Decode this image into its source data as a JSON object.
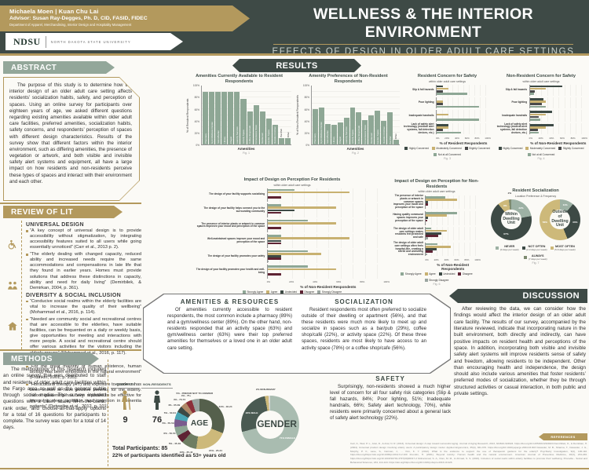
{
  "colors": {
    "header_bg": "#3e4a46",
    "gold": "#b3995d",
    "sage_banner": "#93a79a",
    "bar_sage": "#8ea795",
    "tan": "#c8b171",
    "dark": "#3d4a45",
    "maroon": "#5e2333",
    "gray": "#9aa5a0"
  },
  "header": {
    "authors": "Michaela Moen | Kuan Chu Lai",
    "advisor": "Advisor: Susan Ray-Degges, Ph. D, CID, FASID, FIDEC",
    "department": "Department of Apparel, Merchandising, Interior Design and Hospitality Management",
    "ndsu": "NDSU",
    "university": "NORTH DAKOTA STATE UNIVERSITY",
    "title": "WELLNESS & THE INTERIOR ENVIRONMENT",
    "subtitle": "EFFECTS OF DESIGN IN OLDER ADULT CARE SETTINGS"
  },
  "abstract": {
    "heading": "ABSTRACT",
    "body": "The purpose of this study is to determine how the interior design of an older adult care setting affects residents’ socialization habits, safety, and perception of spaces. Using an online survey for participants over eighteen years of age, we asked different questions regarding existing amenities available within older adult care facilities, preferred amenities, socialization habits, safety concerns, and respondents’ perception of spaces with different design characteristics. Results of the survey show that different factors within the interior environment, such as differing amenities, the presence of vegetation or artwork, and both visible and invisible safety alert systems and equipment, all have a large impact on how residents and non-residents perceive these types of spaces and interact with their environment and each other."
  },
  "review": {
    "heading": "REVIEW OF LIT",
    "sections": [
      {
        "title": "UNIVERSAL DESIGN",
        "icon": "wheelchair-icon",
        "bullets": [
          "“A key concept of universal design is to provide accessibility without stigmatization, by integrating accessibility features suited to all users while going essentially unnoticed” (Carr et al., 2013 p. 2).",
          "“The elderly dealing with changed capacity, reduced ability and increased needs require the same accommodations and compensations in late life that they found in earlier years. Homes must provide solutions that address these distinctions in capacity, ability and need for daily living” (Demirbilek, & Demirkan, 2004, p. 361)."
        ]
      },
      {
        "title": "DIVERSITY & SOCIAL INCLUSION",
        "icon": "people-icon",
        "bullets": [
          "“Conducive social realms within the elderly facilities are vital to increase the quality of their wellbeing” (Mohammad et al., 2016, p. 114).",
          "“Needed are community social and recreational centres that are accessible to the elderlies, have suitable facilities, can be frequented on a daily or weekly basis, give opportunities for meeting and interactions with more people. A social and recreational centre should offer various activities for the visitors including the elderly groups” (Mohammad et al., 2016, p. 117)."
        ]
      },
      {
        "title": "ENVIRONMENT",
        "icon": "house-icon",
        "bullets": [
          "“For the great majority of human existence, human biology has been embedded in the natural environment” (Frumkin, 2001, p. 235).",
          "“Horticultural therapy (HT) and exposure to gardens has been shown to have positive benefits for the elderly. Indoor gardening has been reported to be effective for improving sleep, agitation, and cognition in dementia patients” (Detweiler et al., 2012, p. 101)."
        ]
      }
    ]
  },
  "methods": {
    "heading": "METHODS",
    "body": "The methodology of this research included an online survey that was distributed to staff and residents of older adult care facilities within the Fargo area as well as the general public through social media. The survey included questions with a Likert scale, fill-in-the-blank, rank order, and choose-all-that-apply options for a total of 16 questions for participants to complete. The survey was open for a total of 14 days."
  },
  "results_heading": "RESULTS",
  "panels": {
    "amenities": {
      "heading": "AMENITIES & RESOURCES",
      "body": "Of amenities currently accessible to resident respondents, the most common include a pharmacy (89%) and a gym/wellness center (89%). On the other hand, non-residents responded that an activity space (63%) and gym/wellness center (63%) were their top preferred amenities for themselves or a loved one in an older adult care setting."
    },
    "socialization": {
      "heading": "SOCIALIZATION",
      "body": "Resident respondents most often preferred to socialize outside of their dwelling or apartment (56%), and that these residents were much more likely to meet up and socialize in spaces such as a bar/pub (29%), coffee shop/café (22%), or activity space (22%). Of these three spaces, residents are most likely to have access to an activity space (78%) or a coffee shop/cafe (56%)."
    },
    "safety": {
      "heading": "SAFETY",
      "body": "Surprisingly, non-residents showed a much higher level of concern for all four safety risk categories (Slip & fall hazards, 84%; Poor lighting, 51%; Inadequate handrails, 66%; Safety alert technology, 70%), while residents were primarily concerned about a general lack of safety alert technology (22%)."
    },
    "discussion": {
      "heading": "DISCUSSION",
      "body": "After reviewing the data, we can consider how the findings would affect the interior design of an older adult care facility. The results of our survey, accompanied by the literature reviewed, indicate that incorporating nature in the built environment, both directly and indirectly, can have positive impacts on resident health and perceptions of the space. In addition, incorporating both visible and invisible safety alert systems will improve residents sense of safety and freedom, allowing residents to be independent. Other than encouraging health and independence, the design should also include various amenities that foster residents’ preferred modes of socialization, whether they be through structured activities or casual interaction, in both public and private settings."
    }
  },
  "references": {
    "heading": "REFERENCES",
    "lines": [
      "Carr, K., Weir, P. L., Azar, D., & Azar, N. R. (2013). Universal design: A step toward successful aging. Journal of Aging Research, 2013, 324624-324624. https://doi.org/10.1155/2013/324624",
      "Demirbilek, O., & Demirkan, H. (2004). Universal product design involving elderly users: A participatory design model. Applied Ergonomics, 35(4), 361-370. https://doi.org/10.1016/j.apergo.2004.03.003",
      "Detweiler, M. B., Sharma, T., Detweiler, J. G., Murphy, P. F., Lane, S., Carman, J., … Kim, K. Y. (2012). What is the evidence to support the use of therapeutic gardens for the elderly? Psychiatry Investigation, 9(2), 100-110. https://doi.org/https://doi.org/10.4306/pi.2012.9.2.100",
      "Frumkin, H. (2001). Beyond toxicity: Human health and the natural environment. American Journal of Preventive Medicine, 20(3), 234-240. https://doi.org/https://doi.org/10.1016/S0749-3797(00)00317-2",
      "Mohammad, S. A., Dom, M. M., & Ahmad, S. S. (2016). Inclusion of social realm within elderly facilities to promote their wellbeing. Procedia - Social and Behavioral Sciences, 234, 114-124. https://doi.org/https://doi.org/10.1016/j.sbspro.2016.10.226"
    ]
  },
  "demographics": {
    "residents_label": "RESIDENTS",
    "residents_count": "9",
    "nonresidents_label": "NON-RESIDENTS",
    "nonresidents_count": "76",
    "total_line": "Total Participants: 85",
    "age_note": "22% of participants identified as 53+ years old"
  },
  "chart_data": [
    {
      "type": "bar",
      "title": "Amenities Currently Available to Resident Respondents",
      "xlabel": "Amenities",
      "ylabel": "% of Resident Respondents",
      "ylim": [
        0,
        100
      ],
      "caption": "Fig. 1",
      "color": "#8ea795",
      "categories": [
        "Pharmacy",
        "Gym/Wellness Center",
        "Salon/Barber",
        "Library",
        "Chapel",
        "Laundry Services",
        "Activity Space",
        "Coffee Shop/Café",
        "Convenience Store",
        "Restaurant",
        "Garden Space",
        "Resident Kitchen",
        "Bar/Pub",
        "Other"
      ],
      "values": [
        89,
        89,
        89,
        89,
        89,
        89,
        78,
        56,
        67,
        56,
        44,
        33,
        11,
        11
      ]
    },
    {
      "type": "bar",
      "title": "Amenity Preferences of Non-Resident Respondents",
      "xlabel": "Amenities",
      "ylabel": "% of Non-Resident Respondents",
      "ylim": [
        0,
        100
      ],
      "caption": "Fig. 2",
      "color": "#8ea795",
      "categories": [
        "Pharmacy",
        "Gym/Wellness Center",
        "Salon/Barber",
        "Library",
        "Chapel",
        "Laundry Services",
        "Activity Space",
        "Coffee Shop/Café",
        "Convenience Store",
        "Restaurant",
        "Garden Space",
        "Resident Kitchen",
        "Bar/Pub",
        "Other"
      ],
      "values": [
        60,
        63,
        35,
        33,
        38,
        45,
        63,
        55,
        42,
        50,
        57,
        40,
        55,
        8
      ]
    },
    {
      "type": "hbar",
      "title": "Resident Concern for Safety",
      "subtitle": "within older adult care settings",
      "xlabel": "% of Resident Respondents",
      "xlim": [
        0,
        100
      ],
      "caption": "Fig. 3",
      "categories": [
        "Slip & fall hazards",
        "Poor lighting",
        "Inadequate handrails",
        "Lack of safety alert technology (medical alert systems, fall detection devices, etc.)"
      ],
      "series": [
        {
          "name": "Highly Concerned",
          "color": "#3d4a45",
          "values": [
            11,
            0,
            0,
            22
          ]
        },
        {
          "name": "Moderately Concerned",
          "color": "#c8b171",
          "values": [
            22,
            11,
            22,
            22
          ]
        },
        {
          "name": "Slightly Concerned",
          "color": "#4a4a4a",
          "values": [
            11,
            11,
            0,
            11
          ]
        },
        {
          "name": "Not at all Concerned",
          "color": "#8ea795",
          "values": [
            56,
            78,
            78,
            45
          ]
        }
      ]
    },
    {
      "type": "hbar",
      "title": "Non-Resident Concern for Safety",
      "subtitle": "within older adult care settings",
      "xlabel": "% of Non-Resident Respondents",
      "xlim": [
        0,
        100
      ],
      "caption": "Fig. 4",
      "categories": [
        "Slip & fall hazards",
        "Poor lighting",
        "Inadequate handrails",
        "Lack of safety alert technology (medical alert systems, fall detection devices, etc.)"
      ],
      "series": [
        {
          "name": "Highly Concerned",
          "color": "#3d4a45",
          "values": [
            56,
            23,
            38,
            42
          ]
        },
        {
          "name": "Moderately Concerned",
          "color": "#c8b171",
          "values": [
            28,
            28,
            28,
            28
          ]
        },
        {
          "name": "Slightly Concerned",
          "color": "#4a4a4a",
          "values": [
            9,
            21,
            16,
            14
          ]
        },
        {
          "name": "Not at all Concerned",
          "color": "#8ea795",
          "values": [
            7,
            28,
            18,
            16
          ]
        }
      ]
    },
    {
      "type": "hbar",
      "title": "Impact of Design on Perception For Residents",
      "subtitle": "within older adult care settings",
      "xlabel": "% of Non-Resident Respondents",
      "xlim": [
        0,
        100
      ],
      "caption": "Fig. 5",
      "categories": [
        "The design of your facility supports socializing",
        "The design of your facility helps connect you to the surrounding community",
        "The presence of interior plants or artwork in common spaces improves your mood and perception of the space",
        "Well-maintained spaces improve your mood and perception of the space",
        "The design of your facility promotes your safety",
        "The design of your facility promotes your health and well-being"
      ],
      "series": [
        {
          "name": "Strongly Agree",
          "color": "#8ea795",
          "values": [
            22,
            11,
            33,
            11,
            33,
            33
          ]
        },
        {
          "name": "Agree",
          "color": "#c8b171",
          "values": [
            67,
            56,
            56,
            67,
            44,
            56
          ]
        },
        {
          "name": "Undecided",
          "color": "#3d4a45",
          "values": [
            0,
            22,
            0,
            11,
            11,
            0
          ]
        },
        {
          "name": "Disagree",
          "color": "#5e2333",
          "values": [
            11,
            11,
            11,
            11,
            11,
            11
          ]
        },
        {
          "name": "Strongly Disagree",
          "color": "#9aa5a0",
          "values": [
            0,
            0,
            0,
            0,
            1,
            0
          ]
        }
      ]
    },
    {
      "type": "hbar",
      "title": "Impact of Design on Perception for Non-Residents",
      "subtitle": "within older adult care settings",
      "xlabel": "% of Non-Resident Respondents",
      "xlim": [
        0,
        100
      ],
      "caption": "Fig. 6",
      "categories": [
        "The presence of interior plants or artwork in common spaces improves your mood and perception of the space",
        "Having quality communal spaces improves your perception of the space",
        "The design of older adult care settings makes residents feel protected and safe",
        "The design of older adult care settings often feels hospital-like, creating a sterile and uninviting environment"
      ],
      "series": [
        {
          "name": "Strongly Agree",
          "color": "#8ea795",
          "values": [
            36,
            57,
            9,
            21
          ]
        },
        {
          "name": "Agree",
          "color": "#c8b171",
          "values": [
            57,
            38,
            38,
            46
          ]
        },
        {
          "name": "Undecided",
          "color": "#3d4a45",
          "values": [
            4,
            3,
            28,
            19
          ]
        },
        {
          "name": "Disagree",
          "color": "#5e2333",
          "values": [
            3,
            2,
            22,
            12
          ]
        },
        {
          "name": "Strongly Disagree",
          "color": "#9aa5a0",
          "values": [
            0,
            0,
            3,
            2
          ]
        }
      ]
    },
    {
      "type": "donutpair",
      "title": "Resident Socialization",
      "subtitle": "Location Preference & Frequency",
      "caption": "Fig. 7",
      "size": 52,
      "donuts": [
        {
          "label": "Within Dwelling Unit",
          "slices": [
            {
              "label": "NEVER",
              "value": 22,
              "color": "#9db1a4"
            },
            {
              "label": "NOT OFTEN",
              "value": 67,
              "color": "#3d4a45"
            },
            {
              "label": "MOST OFTEN",
              "value": 9,
              "color": "#cdb97a"
            },
            {
              "label": "ALWAYS",
              "value": 2,
              "color": "#7d8a6f"
            }
          ]
        },
        {
          "label": "Outside of Dwelling Unit",
          "slices": [
            {
              "label": "NEVER",
              "value": 11,
              "color": "#9db1a4"
            },
            {
              "label": "NOT OFTEN",
              "value": 33,
              "color": "#3d4a45"
            },
            {
              "label": "MOST OFTEN",
              "value": 56,
              "color": "#cdb97a"
            },
            {
              "label": "ALWAYS",
              "value": 0,
              "color": "#7d8a6f"
            }
          ]
        }
      ],
      "legend": [
        {
          "label": "NEVER",
          "sub": "(0 days per week)",
          "color": "#9db1a4"
        },
        {
          "label": "NOT OFTEN",
          "sub": "(2-3 days per week)",
          "color": "#3d4a45"
        },
        {
          "label": "MOST OFTEN",
          "sub": "(5-6 days per week)",
          "color": "#cdb97a"
        },
        {
          "label": "ALWAYS",
          "sub": "(7 days per week)",
          "color": "#7d8a6f"
        }
      ]
    },
    {
      "type": "donut",
      "center_label": "AGE",
      "size": 64,
      "label_mode": "out",
      "slices": [
        {
          "label": "18-24",
          "value": 31,
          "color": "#55604c"
        },
        {
          "label": "25-34",
          "value": 21,
          "color": "#cdb97a"
        },
        {
          "label": "35-44",
          "value": 10,
          "color": "#6e7d62"
        },
        {
          "label": "45-49",
          "value": 5,
          "color": "#5e2333"
        },
        {
          "label": "50-54",
          "value": 6,
          "color": "#8ea795"
        },
        {
          "label": "55-59",
          "value": 5,
          "color": "#7a5c8e"
        },
        {
          "label": "60-64",
          "value": 5,
          "color": "#4aa6b5"
        },
        {
          "label": "65-69",
          "value": 4,
          "color": "#3d4a45"
        },
        {
          "label": "70-74",
          "value": 4,
          "color": "#b08968"
        },
        {
          "label": "75+",
          "value": 4,
          "color": "#8c2f39"
        },
        {
          "label": "PREFER NOT TO ANSWER",
          "value": 5,
          "color": "#9aa5a0"
        }
      ]
    },
    {
      "type": "donut",
      "center_label": "GENDER",
      "size": 74,
      "label_mode": "ring",
      "slices": [
        {
          "label": "FEMALE",
          "value": 71,
          "color": "#a9bcb0"
        },
        {
          "label": "MALE",
          "value": 26,
          "color": "#4a5a52"
        },
        {
          "label": "NON-BINARY",
          "value": 2,
          "color": "#cdb97a"
        },
        {
          "label": "PREFER NOT TO ANSWER",
          "value": 1,
          "color": "#d9d9d9"
        }
      ]
    }
  ]
}
